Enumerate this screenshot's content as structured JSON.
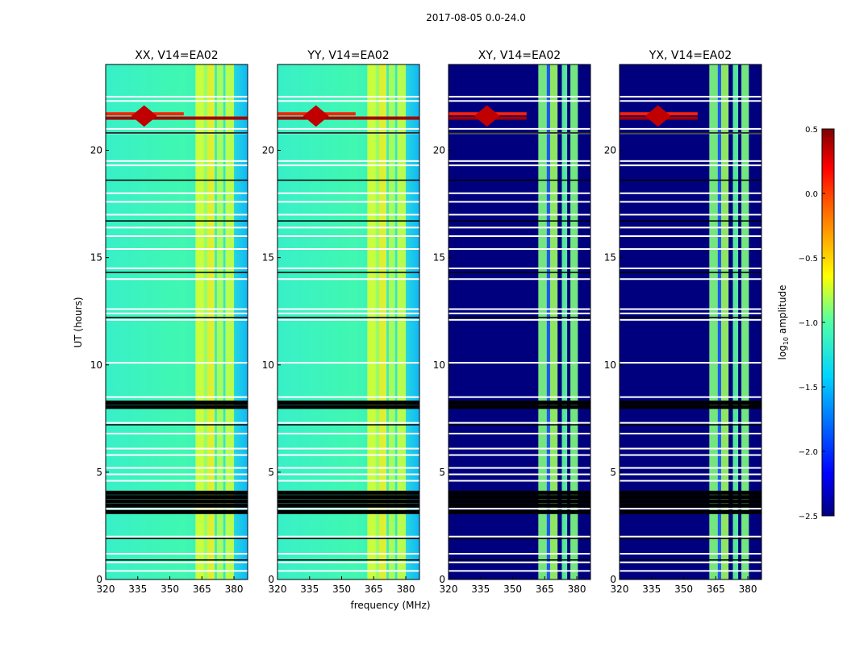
{
  "chart_data": {
    "type": "heatmap",
    "suptitle": "2017-08-05 0.0-24.0",
    "xlabel": "frequency (MHz)",
    "ylabel": "UT (hours)",
    "xlim": [
      320,
      386.4
    ],
    "ylim": [
      0,
      24
    ],
    "xticks": [
      "320",
      "335",
      "350",
      "365",
      "380"
    ],
    "xtick_values": [
      320,
      335,
      350,
      365,
      380
    ],
    "yticks": [
      "0",
      "5",
      "10",
      "15",
      "20"
    ],
    "ytick_values": [
      0,
      5,
      10,
      15,
      20
    ],
    "panels": [
      {
        "title": "XX, V14=EA02",
        "kind": "parallel"
      },
      {
        "title": "YY, V14=EA02",
        "kind": "parallel"
      },
      {
        "title": "XY, V14=EA02",
        "kind": "cross"
      },
      {
        "title": "YX, V14=EA02",
        "kind": "cross"
      }
    ],
    "rfi_event_hours": [
      21.5,
      21.7
    ],
    "flagged_white_hours": [
      0.4,
      0.8,
      1.2,
      2.0,
      3.3,
      4.6,
      4.9,
      5.2,
      5.8,
      6.1,
      6.8,
      7.3,
      8.5,
      10.1,
      12.1,
      12.4,
      12.6,
      14.0,
      14.5,
      15.4,
      16.0,
      16.4,
      17.0,
      17.6,
      18.0,
      19.3,
      19.5,
      20.8,
      21.0,
      22.3,
      22.5
    ],
    "flagged_black_hours": [
      0.9,
      1.9,
      3.2,
      3.5,
      3.7,
      3.9,
      4.1,
      7.2,
      8.1,
      8.3,
      12.2,
      14.3,
      16.7,
      18.6,
      20.8
    ],
    "colorbar": {
      "label": "log10 amplitude",
      "label_main": "log",
      "label_sub": "10",
      "label_rest": " amplitude",
      "range": [
        -2.5,
        0.5
      ],
      "ticks": [
        "0.5",
        "0.0",
        "−0.5",
        "−1.0",
        "−1.5",
        "−2.0",
        "−2.5"
      ],
      "tick_values": [
        0.5,
        0.0,
        -0.5,
        -1.0,
        -1.5,
        -2.0,
        -2.5
      ],
      "colormap": "jet"
    }
  }
}
